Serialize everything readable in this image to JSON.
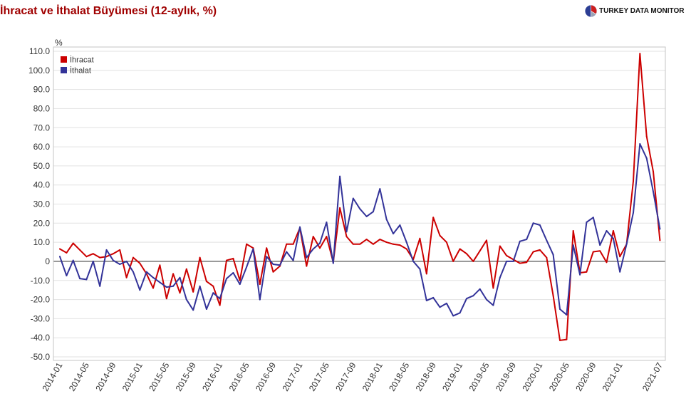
{
  "brand": {
    "name": "TURKEY DATA MONITOR",
    "icon": "pie-chart-logo-icon"
  },
  "chart_data": {
    "type": "line",
    "title": "İhracat ve İthalat Büyümesi (12-aylık, %)",
    "ylabel": "%",
    "ylim": [
      -50,
      110
    ],
    "yticks": [
      "110.0",
      "100.0",
      "90.0",
      "80.0",
      "70.0",
      "60.0",
      "50.0",
      "40.0",
      "30.0",
      "20.0",
      "10.0",
      "0",
      "-10.0",
      "-20.0",
      "-30.0",
      "-40.0",
      "-50.0"
    ],
    "xticks": [
      "2014-01",
      "2014-05",
      "2014-09",
      "2015-01",
      "2015-05",
      "2015-09",
      "2016-01",
      "2016-05",
      "2016-09",
      "2017-01",
      "2017-05",
      "2017-09",
      "2018-01",
      "2018-05",
      "2018-09",
      "2019-01",
      "2019-05",
      "2019-09",
      "2020-01",
      "2020-05",
      "2020-09",
      "2021-01",
      "2021-07"
    ],
    "x": [
      "2014-01",
      "2014-02",
      "2014-03",
      "2014-04",
      "2014-05",
      "2014-06",
      "2014-07",
      "2014-08",
      "2014-09",
      "2014-10",
      "2014-11",
      "2014-12",
      "2015-01",
      "2015-02",
      "2015-03",
      "2015-04",
      "2015-05",
      "2015-06",
      "2015-07",
      "2015-08",
      "2015-09",
      "2015-10",
      "2015-11",
      "2015-12",
      "2016-01",
      "2016-02",
      "2016-03",
      "2016-04",
      "2016-05",
      "2016-06",
      "2016-07",
      "2016-08",
      "2016-09",
      "2016-10",
      "2016-11",
      "2016-12",
      "2017-01",
      "2017-02",
      "2017-03",
      "2017-04",
      "2017-05",
      "2017-06",
      "2017-07",
      "2017-08",
      "2017-09",
      "2017-10",
      "2017-11",
      "2017-12",
      "2018-01",
      "2018-02",
      "2018-03",
      "2018-04",
      "2018-05",
      "2018-06",
      "2018-07",
      "2018-08",
      "2018-09",
      "2018-10",
      "2018-11",
      "2018-12",
      "2019-01",
      "2019-02",
      "2019-03",
      "2019-04",
      "2019-05",
      "2019-06",
      "2019-07",
      "2019-08",
      "2019-09",
      "2019-10",
      "2019-11",
      "2019-12",
      "2020-01",
      "2020-02",
      "2020-03",
      "2020-04",
      "2020-05",
      "2020-06",
      "2020-07",
      "2020-08",
      "2020-09",
      "2020-10",
      "2020-11",
      "2020-12",
      "2021-01",
      "2021-02",
      "2021-03",
      "2021-04",
      "2021-05",
      "2021-06",
      "2021-07"
    ],
    "series": [
      {
        "name": "İhracat",
        "color": "#cc0000",
        "values": [
          6.5,
          4.5,
          9.5,
          6,
          2.5,
          4,
          2,
          2.5,
          4,
          6,
          -8.5,
          2,
          -1,
          -6.5,
          -14,
          -2,
          -19.5,
          -6.5,
          -16.5,
          -4,
          -16,
          2,
          -10.5,
          -13,
          -23,
          0.5,
          1.5,
          -10,
          9,
          7,
          -12,
          7,
          -5.5,
          -2.5,
          9,
          9,
          17.5,
          -2.5,
          13,
          7,
          13,
          -0.5,
          28,
          13,
          9,
          9,
          11.5,
          9,
          11.5,
          10,
          9,
          8.5,
          6.5,
          1,
          12,
          -6.5,
          23,
          13.5,
          10,
          0,
          6.5,
          4,
          0,
          5.5,
          11,
          -14,
          8,
          3,
          1,
          -1,
          -0.5,
          5,
          6,
          2,
          -18,
          -41.4,
          -40.9,
          16,
          -6,
          -5.5,
          5,
          5.5,
          -0.5,
          16,
          2.5,
          9,
          42,
          108.8,
          65.5,
          47,
          11
        ]
      },
      {
        "name": "İthalat",
        "color": "#333399",
        "values": [
          2.5,
          -7.5,
          0.5,
          -9,
          -9.5,
          0,
          -13,
          6,
          0.5,
          -1.5,
          0,
          -5.5,
          -15,
          -5.5,
          -8.5,
          -11,
          -13.5,
          -13,
          -8.5,
          -20,
          -25.5,
          -13,
          -25,
          -16.5,
          -19.5,
          -9,
          -6,
          -12,
          -3,
          6.5,
          -20,
          2.5,
          -1.5,
          -2,
          5,
          0.5,
          18,
          2,
          6.5,
          9.5,
          20.5,
          -1,
          44.5,
          15.5,
          33,
          27.5,
          23.5,
          26,
          38,
          22,
          14.5,
          19,
          10,
          0,
          -4,
          -20.5,
          -19,
          -24,
          -22,
          -28.5,
          -27,
          -19.5,
          -18,
          -14.5,
          -20,
          -23,
          -8.5,
          0,
          0,
          10.5,
          11.5,
          20,
          19,
          11,
          3.5,
          -25,
          -28,
          8.5,
          -7,
          20.5,
          23,
          8.5,
          16,
          12,
          -5.5,
          9,
          25.5,
          61.5,
          54,
          36.5,
          17
        ]
      }
    ],
    "legend": "top-left",
    "grid": "horizontal"
  }
}
